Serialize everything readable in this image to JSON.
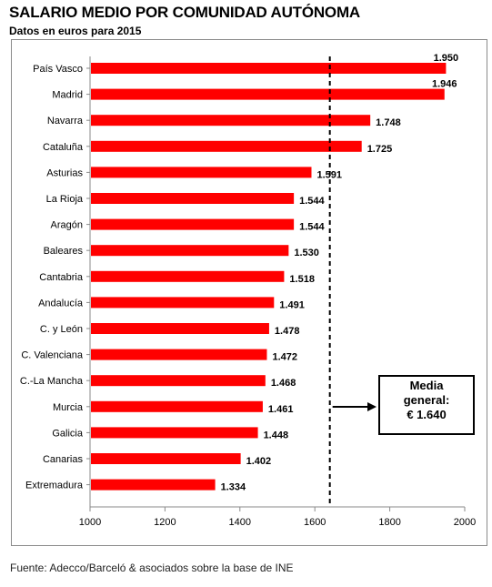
{
  "chart_data": {
    "type": "bar",
    "orientation": "horizontal",
    "title": "SALARIO MEDIO POR COMUNIDAD AUTÓNOMA",
    "subtitle": "Datos en euros para 2015",
    "categories": [
      "País Vasco",
      "Madrid",
      "Navarra",
      "Cataluña",
      "Asturias",
      "La Rioja",
      "Aragón",
      "Baleares",
      "Cantabria",
      "Andalucía",
      "C. y León",
      "C. Valenciana",
      "C.-La Mancha",
      "Murcia",
      "Galicia",
      "Canarias",
      "Extremadura"
    ],
    "values": [
      1950,
      1946,
      1748,
      1725,
      1591,
      1544,
      1544,
      1530,
      1518,
      1491,
      1478,
      1472,
      1468,
      1461,
      1448,
      1402,
      1334
    ],
    "value_labels": [
      "1.950",
      "1.946",
      "1.748",
      "1.725",
      "1.591",
      "1.544",
      "1.544",
      "1.530",
      "1.518",
      "1.491",
      "1.478",
      "1.472",
      "1.468",
      "1.461",
      "1.448",
      "1.402",
      "1.334"
    ],
    "xlim": [
      1000,
      2000
    ],
    "xticks": [
      1000,
      1200,
      1400,
      1600,
      1800,
      2000
    ],
    "bar_color": "#ff0000",
    "reference_line": {
      "value": 1640,
      "style": "dashed"
    },
    "annotation": {
      "lines": [
        "Media",
        "general:",
        "€ 1.640"
      ]
    },
    "grid": false
  },
  "source": "Fuente: Adecco/Barceló & asociados sobre la base de INE"
}
